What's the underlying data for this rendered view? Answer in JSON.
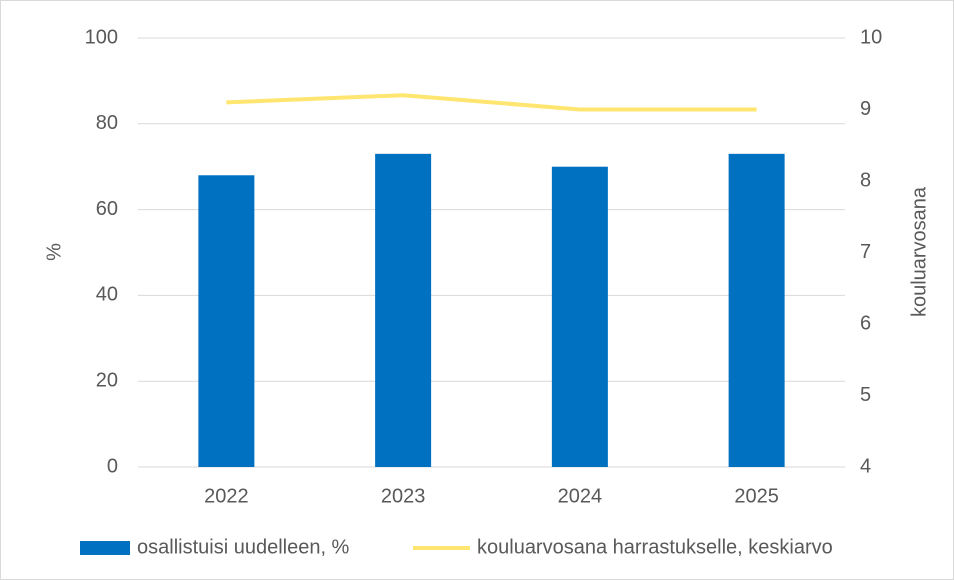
{
  "chart_data": {
    "type": "bar",
    "categories": [
      "2022",
      "2023",
      "2024",
      "2025"
    ],
    "series": [
      {
        "name": "osallistuisi uudelleen, %",
        "type": "bar",
        "color": "#0070c0",
        "values": [
          68,
          73,
          70,
          73
        ]
      },
      {
        "name": "kouluarvosana harrastukselle, keskiarvo",
        "type": "line",
        "axis": "y2",
        "color": "#ffe670",
        "values": [
          9.1,
          9.2,
          9.0,
          9.0
        ]
      }
    ],
    "ylabel": "%",
    "y2label": "kouluarvosana",
    "ylim": [
      0,
      100
    ],
    "yticks": [
      0,
      20,
      40,
      60,
      80,
      100
    ],
    "y2lim": [
      4,
      10
    ],
    "y2ticks": [
      4,
      5,
      6,
      7,
      8,
      9,
      10
    ],
    "grid": true,
    "legend": "bottom"
  }
}
